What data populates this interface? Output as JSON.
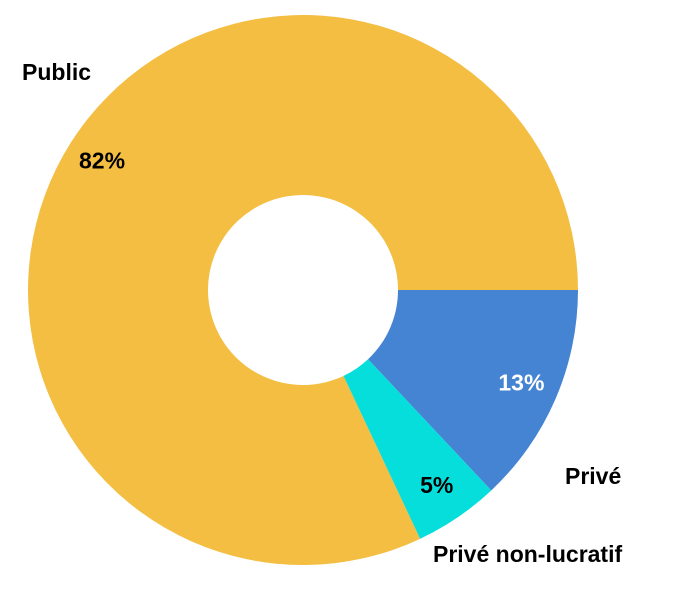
{
  "chart_data": {
    "type": "donut",
    "categories": [
      "Privé",
      "Privé non-lucratif",
      "Public"
    ],
    "values": [
      13,
      5,
      82
    ],
    "value_labels": [
      "13%",
      "5%",
      "82%"
    ],
    "colors": [
      "#4584d3",
      "#06dedb",
      "#f3be41"
    ],
    "value_label_colors": [
      "#ffffff",
      "#000000",
      "#000000"
    ]
  }
}
